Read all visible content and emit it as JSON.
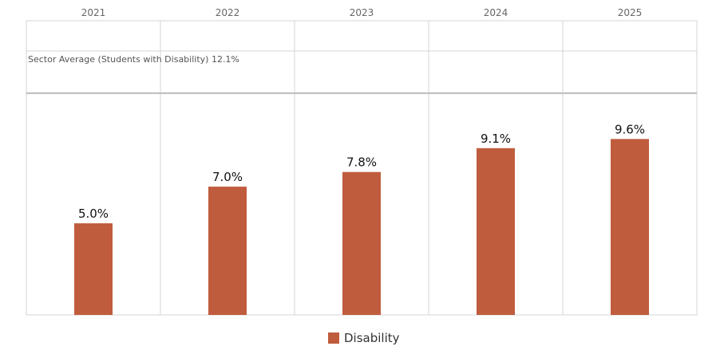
{
  "chart_data": {
    "type": "bar",
    "categories": [
      "2021",
      "2022",
      "2023",
      "2024",
      "2025"
    ],
    "series": [
      {
        "name": "Disability",
        "values": [
          5.0,
          7.0,
          7.8,
          9.1,
          9.6
        ],
        "value_labels": [
          "5.0%",
          "7.0%",
          "7.8%",
          "9.1%",
          "9.6%"
        ]
      }
    ],
    "reference_line": {
      "label": "Sector Average (Students with Disability) 12.1%",
      "value": 12.1
    },
    "ylim": [
      0,
      14.4
    ],
    "grid": true,
    "legend_position": "bottom-center",
    "colors": {
      "bar": "#c05c3e",
      "grid": "#d4d4d4",
      "reference": "#bbbbbb"
    }
  }
}
